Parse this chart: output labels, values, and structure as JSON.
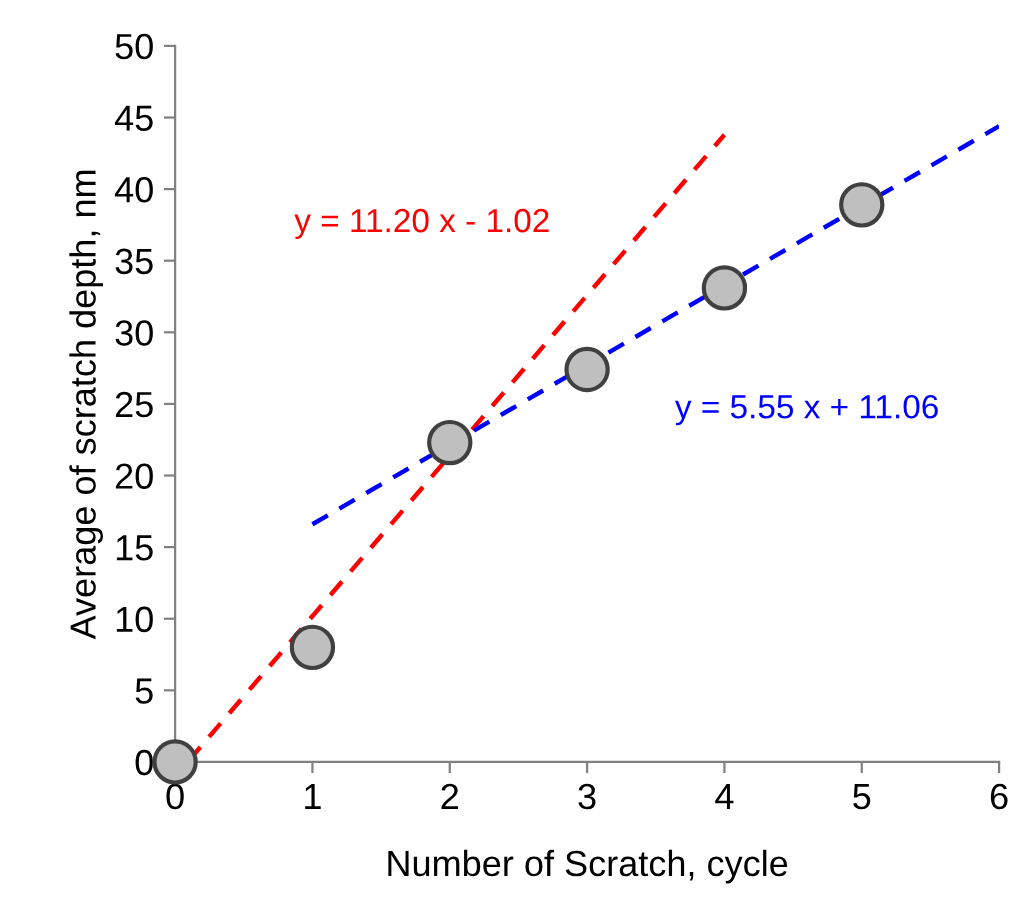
{
  "chart_data": {
    "type": "scatter",
    "xlabel": "Number of Scratch, cycle",
    "ylabel": "Average of scratch depth, nm",
    "xlim": [
      0,
      6
    ],
    "xticks": [
      0,
      1,
      2,
      3,
      4,
      5,
      6
    ],
    "ylim": [
      0,
      50
    ],
    "yticks": [
      0,
      5,
      10,
      15,
      20,
      25,
      30,
      35,
      40,
      45,
      50
    ],
    "grid": false,
    "legend": false,
    "series": [
      {
        "color": "#bfbfbf",
        "marker": "circle",
        "x": [
          0,
          1,
          2,
          3,
          4,
          5
        ],
        "values": [
          0,
          8,
          22.3,
          27.4,
          33.1,
          38.9
        ]
      },
      {
        "type": "line",
        "color": "#ff0000",
        "line_style": "dashed",
        "x": [
          0.1,
          4
        ],
        "values": [
          0.1,
          43.8
        ]
      },
      {
        "type": "line",
        "color": "#0000ff",
        "line_style": "dashed",
        "x": [
          1,
          6
        ],
        "values": [
          16.6,
          44.4
        ]
      }
    ],
    "annotations": [
      "y = 11.20 x - 1.02",
      "y = 5.55 x + 11.06"
    ]
  }
}
